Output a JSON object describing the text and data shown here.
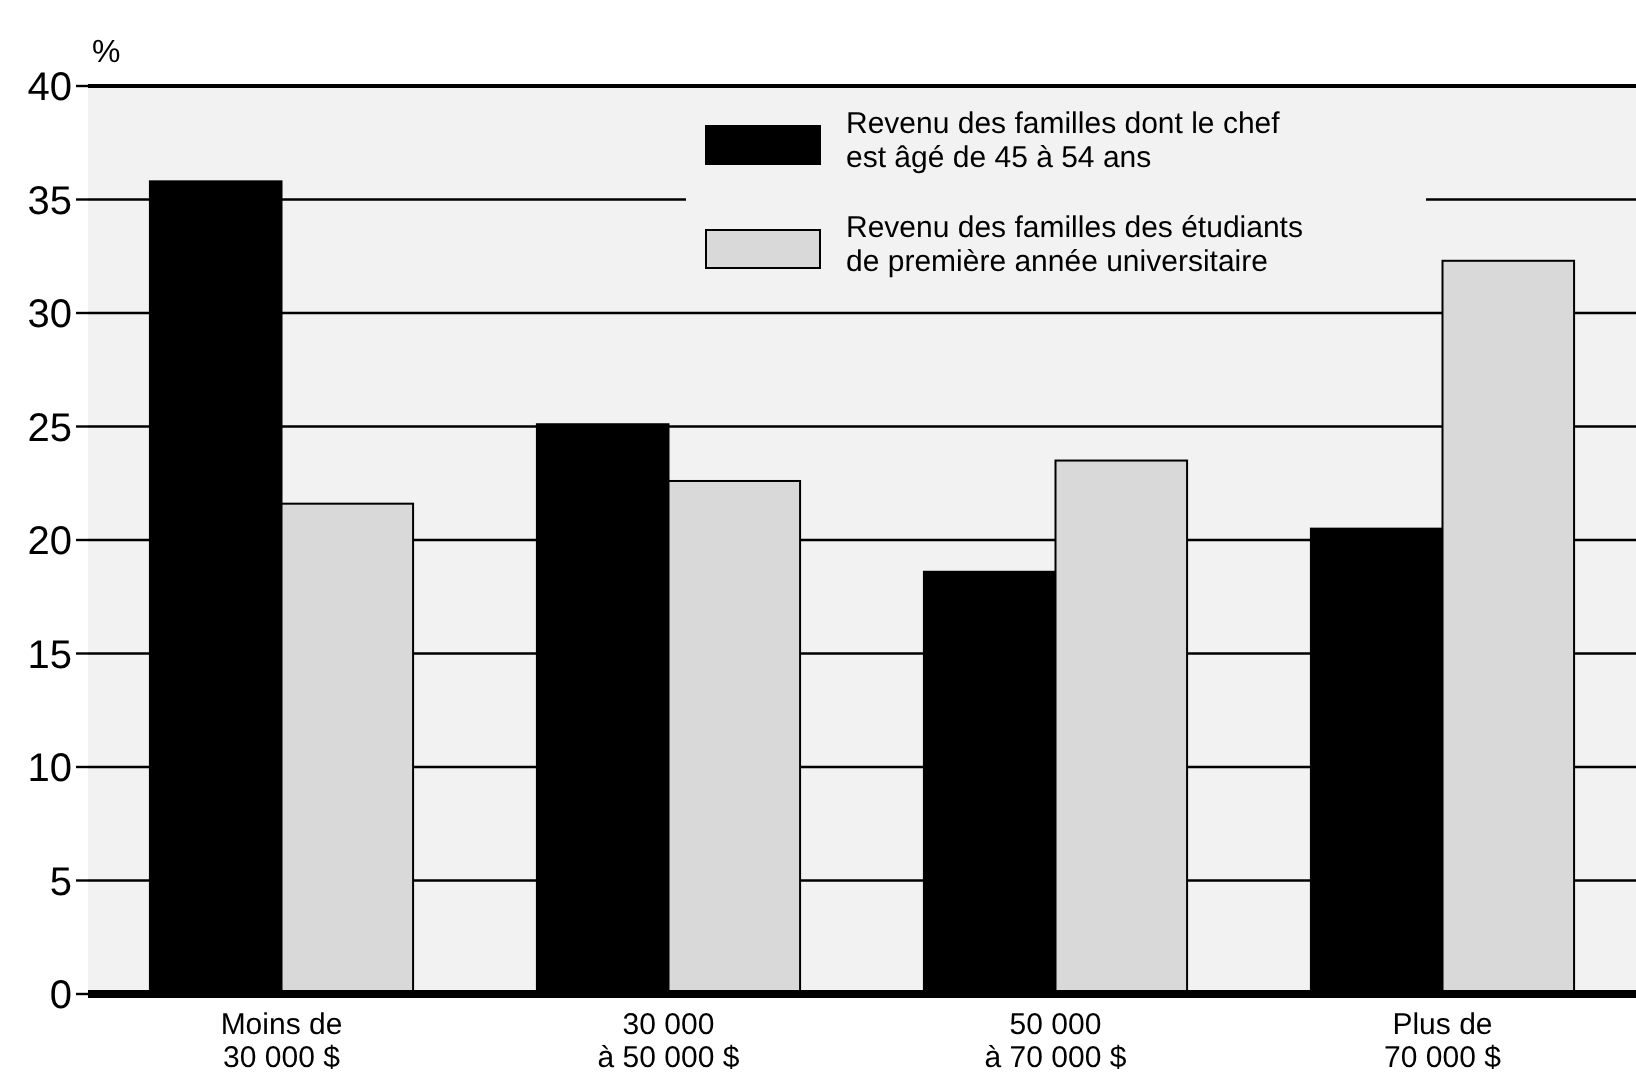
{
  "chart_data": {
    "type": "bar",
    "ylabel": "%",
    "categories": [
      "Moins de\n30 000 $",
      "30 000\nà 50 000 $",
      "50 000\nà 70 000 $",
      "Plus de\n70 000 $"
    ],
    "series": [
      {
        "name": "Revenu des familles dont le chef\nest âgé de 45 à 54 ans",
        "color": "#000000",
        "values": [
          35.8,
          25.1,
          18.6,
          20.5
        ]
      },
      {
        "name": "Revenu des familles des étudiants\nde première année universitaire",
        "color": "#d9d9d9",
        "values": [
          21.6,
          22.6,
          23.5,
          32.3
        ]
      }
    ],
    "ylim": [
      0,
      40
    ],
    "yticks": [
      0,
      5,
      10,
      15,
      20,
      25,
      30,
      35,
      40
    ],
    "grid": "y",
    "legend": "top right"
  }
}
